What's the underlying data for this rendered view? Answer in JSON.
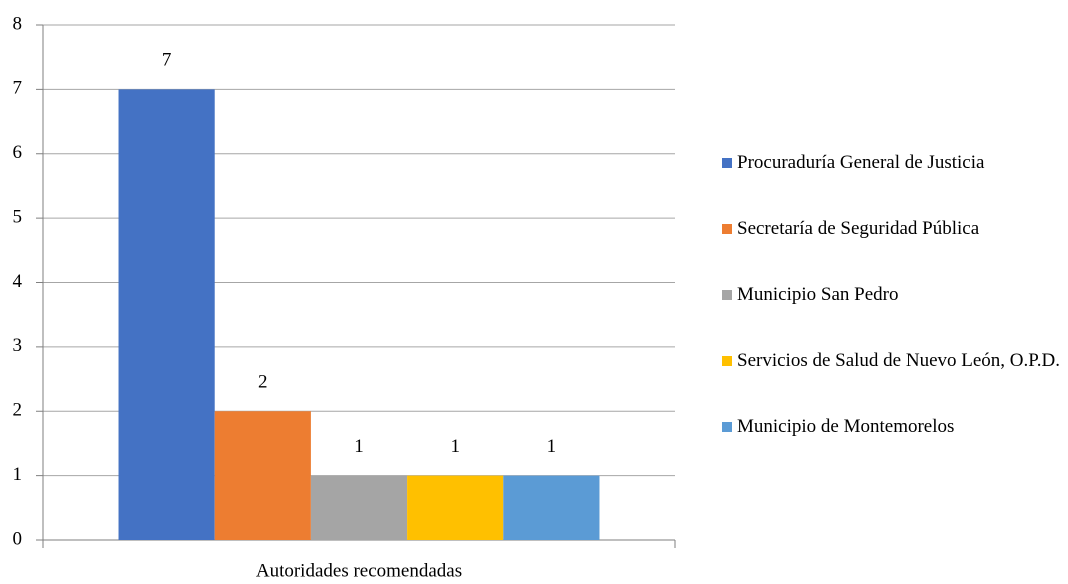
{
  "chart_data": {
    "type": "bar",
    "categories": [
      "Autoridades recomendadas"
    ],
    "series": [
      {
        "name": "Procuraduría General de Justicia",
        "color": "#4472c4",
        "values": [
          7
        ]
      },
      {
        "name": "Secretaría de Seguridad Pública",
        "color": "#ed7d31",
        "values": [
          2
        ]
      },
      {
        "name": "Municipio San Pedro",
        "color": "#a5a5a5",
        "values": [
          1
        ]
      },
      {
        "name": "Servicios de Salud de Nuevo León, O.P.D.",
        "color": "#ffc000",
        "values": [
          1
        ]
      },
      {
        "name": "Municipio de Montemorelos",
        "color": "#5b9bd5",
        "values": [
          1
        ]
      }
    ],
    "ylim": [
      0,
      8
    ],
    "yticks": [
      0,
      1,
      2,
      3,
      4,
      5,
      6,
      7,
      8
    ],
    "grid": true,
    "legend": "right"
  }
}
